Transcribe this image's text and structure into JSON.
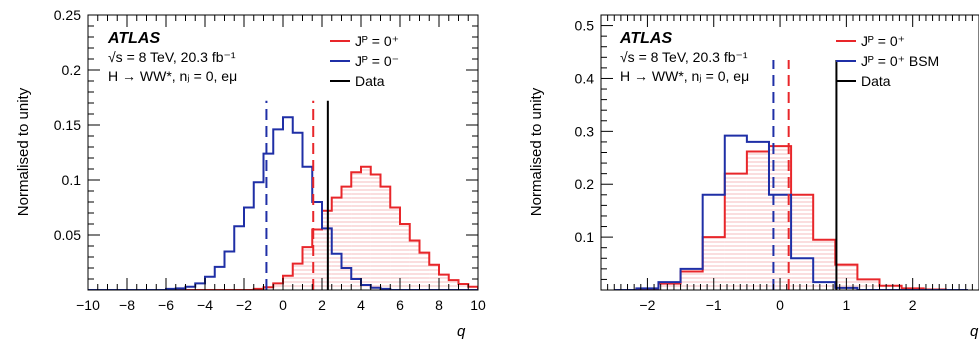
{
  "chart_data": [
    {
      "type": "histogram",
      "ylabel": "Normalised to unity",
      "xlabel": "q",
      "xlim": [
        -10,
        10
      ],
      "ylim": [
        0,
        0.25
      ],
      "xticks": [
        -10,
        -8,
        -6,
        -4,
        -2,
        0,
        2,
        4,
        6,
        8,
        10
      ],
      "xtick_labels": [
        "−10",
        "−8",
        "−6",
        "−4",
        "−2",
        "0",
        "2",
        "4",
        "6",
        "8",
        "10"
      ],
      "yticks": [
        0.05,
        0.1,
        0.15,
        0.2,
        0.25
      ],
      "ytick_labels": [
        "0.05",
        "0.1",
        "0.15",
        "0.2",
        "0.25"
      ],
      "annotations": {
        "experiment": "ATLAS",
        "energy_line": "√s = 8 TeV, 20.3 fb⁻¹",
        "channel_line": "H → WW*, nⱼ = 0, eμ"
      },
      "legend": {
        "placement": "top-right",
        "entries": [
          "Jᴾ = 0⁺",
          "Jᴾ = 0⁻",
          "Data"
        ]
      },
      "bin_edges_from": -10,
      "bin_width": 0.5,
      "series": [
        {
          "role": "hypothesis-1",
          "color": "#e8262a",
          "hatched": true,
          "values": [
            0,
            0,
            0,
            0,
            0,
            0,
            0,
            0,
            0,
            0,
            0,
            0,
            0,
            0,
            0,
            0,
            0,
            0.001,
            0.0025,
            0.006,
            0.013,
            0.024,
            0.039,
            0.055,
            0.072,
            0.084,
            0.094,
            0.107,
            0.112,
            0.105,
            0.094,
            0.075,
            0.06,
            0.045,
            0.034,
            0.023,
            0.014,
            0.009,
            0.0055,
            0.003
          ]
        },
        {
          "role": "hypothesis-2",
          "color": "#1f2fa6",
          "hatched": false,
          "values": [
            0,
            0,
            0,
            0,
            0,
            0,
            0,
            0,
            0.001,
            0.0015,
            0.003,
            0.006,
            0.012,
            0.021,
            0.035,
            0.058,
            0.075,
            0.098,
            0.124,
            0.146,
            0.157,
            0.143,
            0.112,
            0.08,
            0.056,
            0.033,
            0.02,
            0.01,
            0.0045,
            0.002,
            0.001,
            0,
            0,
            0,
            0,
            0,
            0,
            0,
            0,
            0
          ]
        }
      ],
      "vlines": [
        {
          "x": -0.85,
          "color": "#1f2fa6",
          "dashed": true,
          "ymax": 0.172
        },
        {
          "x": 1.55,
          "color": "#e8262a",
          "dashed": true,
          "ymax": 0.172
        },
        {
          "x": 2.3,
          "color": "#000000",
          "dashed": false,
          "ymax": 0.172
        }
      ]
    },
    {
      "type": "histogram",
      "ylabel": "Normalised to unity",
      "xlabel": "q",
      "xlim": [
        -2.7,
        3.0
      ],
      "ylim": [
        0,
        0.52
      ],
      "xticks": [
        -2,
        -1,
        0,
        1,
        2
      ],
      "xtick_labels": [
        "−2",
        "−1",
        "0",
        "1",
        "2"
      ],
      "yticks": [
        0.1,
        0.2,
        0.3,
        0.4,
        0.5
      ],
      "ytick_labels": [
        "0.1",
        "0.2",
        "0.3",
        "0.4",
        "0.5"
      ],
      "annotations": {
        "experiment": "ATLAS",
        "energy_line": "√s = 8 TeV, 20.3 fb⁻¹",
        "channel_line": "H → WW*, nⱼ = 0, eμ"
      },
      "legend": {
        "placement": "top-right",
        "entries": [
          "Jᴾ = 0⁺",
          "Jᴾ = 0⁺ BSM",
          "Data"
        ]
      },
      "bin_edges_from": -2.5,
      "bin_width": 0.3333,
      "series": [
        {
          "role": "hypothesis-1",
          "color": "#e8262a",
          "hatched": true,
          "values": [
            0,
            0.002,
            0.012,
            0.035,
            0.1,
            0.22,
            0.262,
            0.272,
            0.18,
            0.095,
            0.048,
            0.02,
            0.008,
            0.003,
            0.001,
            0
          ]
        },
        {
          "role": "hypothesis-2",
          "color": "#1f2fa6",
          "hatched": false,
          "values": [
            0,
            0.003,
            0.015,
            0.04,
            0.18,
            0.292,
            0.28,
            0.18,
            0.06,
            0.015,
            0.004,
            0,
            0,
            0,
            0,
            0
          ]
        }
      ],
      "vlines": [
        {
          "x": -0.1,
          "color": "#1f2fa6",
          "dashed": true,
          "ymax": 0.435
        },
        {
          "x": 0.13,
          "color": "#e8262a",
          "dashed": true,
          "ymax": 0.435
        },
        {
          "x": 0.85,
          "color": "#000000",
          "dashed": false,
          "ymax": 0.435
        }
      ]
    }
  ]
}
